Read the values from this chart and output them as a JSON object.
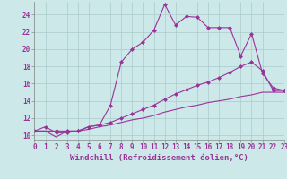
{
  "xlabel": "Windchill (Refroidissement éolien,°C)",
  "bg_color": "#cde8e8",
  "line_color": "#993399",
  "grid_color": "#aacccc",
  "xmin": 0,
  "xmax": 23,
  "ymin": 9.5,
  "ymax": 25.5,
  "yticks": [
    10,
    12,
    14,
    16,
    18,
    20,
    22,
    24
  ],
  "line1_x": [
    0,
    1,
    2,
    3,
    4,
    5,
    6,
    7,
    8,
    9,
    10,
    11,
    12,
    13,
    14,
    15,
    16,
    17,
    18,
    19,
    20,
    21,
    22,
    23
  ],
  "line1_y": [
    10.5,
    11.0,
    10.3,
    10.3,
    10.5,
    11.0,
    11.2,
    13.5,
    18.5,
    20.0,
    20.8,
    22.2,
    25.2,
    22.8,
    23.8,
    23.7,
    22.5,
    22.5,
    22.5,
    19.2,
    21.8,
    17.2,
    15.5,
    15.2
  ],
  "line2_x": [
    0,
    2,
    3,
    4,
    5,
    6,
    7,
    8,
    9,
    10,
    11,
    12,
    13,
    14,
    15,
    16,
    17,
    18,
    19,
    20,
    21,
    22,
    23
  ],
  "line2_y": [
    10.5,
    10.5,
    10.5,
    10.5,
    11.0,
    11.2,
    11.5,
    12.0,
    12.5,
    13.0,
    13.5,
    14.2,
    14.8,
    15.3,
    15.8,
    16.2,
    16.7,
    17.3,
    18.0,
    18.5,
    17.5,
    15.2,
    15.2
  ],
  "line3_x": [
    0,
    1,
    2,
    3,
    4,
    5,
    6,
    7,
    8,
    9,
    10,
    11,
    12,
    13,
    14,
    15,
    16,
    17,
    18,
    19,
    20,
    21,
    22,
    23
  ],
  "line3_y": [
    10.5,
    10.5,
    9.8,
    10.5,
    10.5,
    10.7,
    11.0,
    11.2,
    11.5,
    11.8,
    12.0,
    12.3,
    12.7,
    13.0,
    13.3,
    13.5,
    13.8,
    14.0,
    14.2,
    14.5,
    14.7,
    15.0,
    15.0,
    15.0
  ],
  "tick_fontsize": 5.5,
  "xlabel_fontsize": 6.5,
  "marker_size": 2.5,
  "line_width": 0.8
}
